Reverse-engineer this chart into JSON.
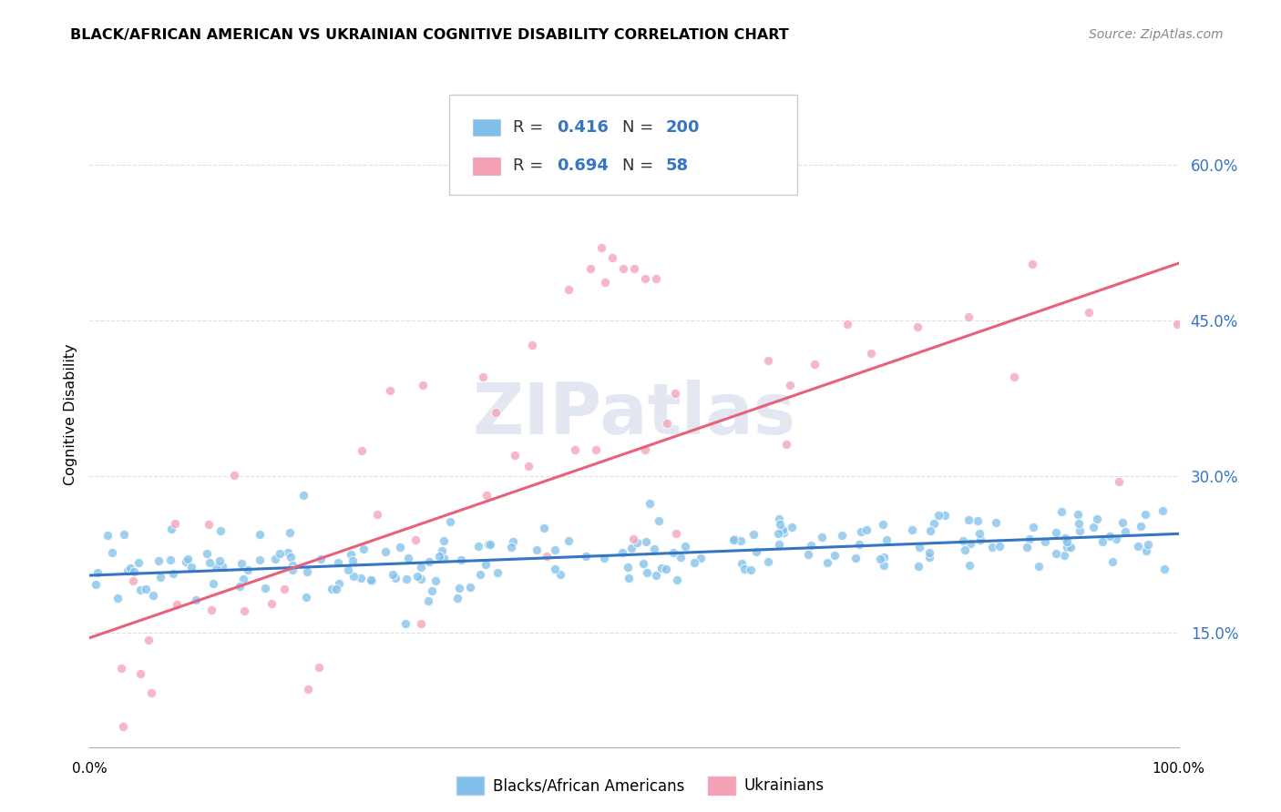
{
  "title": "BLACK/AFRICAN AMERICAN VS UKRAINIAN COGNITIVE DISABILITY CORRELATION CHART",
  "source": "Source: ZipAtlas.com",
  "ylabel": "Cognitive Disability",
  "right_yticks": [
    "60.0%",
    "45.0%",
    "30.0%",
    "15.0%"
  ],
  "right_ytick_vals": [
    0.6,
    0.45,
    0.3,
    0.15
  ],
  "blue_color": "#7fbfea",
  "pink_color": "#f4a0b5",
  "blue_line_color": "#3575c2",
  "pink_line_color": "#e8607a",
  "blue_R": 0.416,
  "blue_N": 200,
  "pink_R": 0.694,
  "pink_N": 58,
  "legend_label_blue": "Blacks/African Americans",
  "legend_label_pink": "Ukrainians",
  "watermark": "ZIPatlas",
  "background_color": "#ffffff",
  "grid_color": "#e0e0e0",
  "blue_trendline_y_start": 0.205,
  "blue_trendline_y_end": 0.245,
  "pink_trendline_y_start": 0.145,
  "pink_trendline_y_end": 0.505,
  "xmin": 0.0,
  "xmax": 100.0,
  "ymin": 0.04,
  "ymax": 0.68
}
